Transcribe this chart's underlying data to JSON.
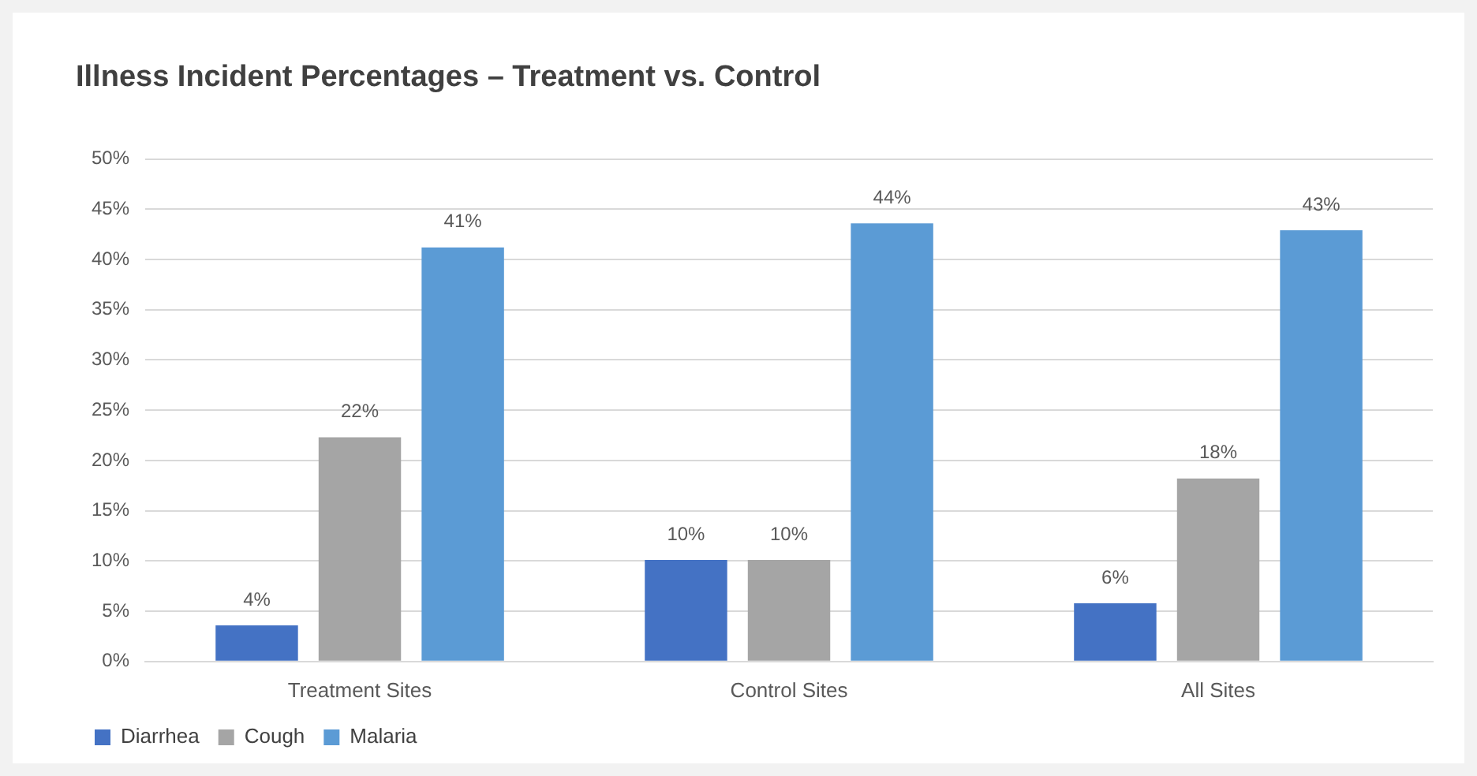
{
  "chart_data": {
    "type": "bar",
    "title": "Illness Incident Percentages – Treatment vs. Control",
    "categories": [
      "Treatment Sites",
      "Control Sites",
      "All Sites"
    ],
    "series": [
      {
        "name": "Diarrhea",
        "color": "#4472c4",
        "values": [
          3.6,
          10.1,
          5.8
        ],
        "value_labels": [
          "4%",
          "10%",
          "6%"
        ]
      },
      {
        "name": "Cough",
        "color": "#a5a5a5",
        "values": [
          22.3,
          10.1,
          18.2
        ],
        "value_labels": [
          "22%",
          "10%",
          "18%"
        ]
      },
      {
        "name": "Malaria",
        "color": "#5b9bd5",
        "values": [
          41.2,
          43.6,
          42.9
        ],
        "value_labels": [
          "41%",
          "44%",
          "43%"
        ]
      }
    ],
    "ylim": [
      0,
      50
    ],
    "yticks": [
      {
        "value": 0,
        "label": "0%"
      },
      {
        "value": 5,
        "label": "5%"
      },
      {
        "value": 10,
        "label": "10%"
      },
      {
        "value": 15,
        "label": "15%"
      },
      {
        "value": 20,
        "label": "20%"
      },
      {
        "value": 25,
        "label": "25%"
      },
      {
        "value": 30,
        "label": "30%"
      },
      {
        "value": 35,
        "label": "35%"
      },
      {
        "value": 40,
        "label": "40%"
      },
      {
        "value": 45,
        "label": "45%"
      },
      {
        "value": 50,
        "label": "50%"
      }
    ],
    "grid": "y",
    "legend": "bottom left"
  }
}
